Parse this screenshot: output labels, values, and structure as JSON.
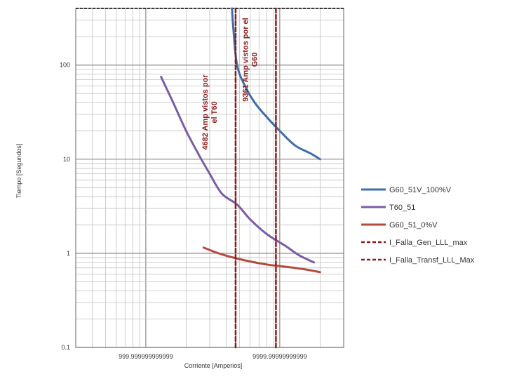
{
  "chart_data": {
    "type": "line",
    "xscale": "log",
    "yscale": "log",
    "xlim": [
      300,
      30000
    ],
    "ylim": [
      0.1,
      400
    ],
    "grid": true,
    "legend_position": "right",
    "xlabel": "Corriente [Amperios]",
    "ylabel": "Tiempo [Segundos]",
    "x_tick_labels": [
      {
        "value": 1000,
        "label": "999.999999999999"
      },
      {
        "value": 10000,
        "label": "9999.99999999999"
      }
    ],
    "y_tick_labels": [
      {
        "value": 0.1,
        "label": "0.1"
      },
      {
        "value": 1,
        "label": "1"
      },
      {
        "value": 10,
        "label": "10"
      },
      {
        "value": 100,
        "label": "100"
      }
    ],
    "series": [
      {
        "name": "G60_51V_100%V",
        "color": "#3f6ea8",
        "style": "solid",
        "points": [
          [
            4400,
            400
          ],
          [
            4500,
            250
          ],
          [
            4800,
            100
          ],
          [
            5500,
            60
          ],
          [
            6500,
            40
          ],
          [
            8000,
            28
          ],
          [
            10000,
            20
          ],
          [
            13000,
            14
          ],
          [
            17000,
            11.5
          ],
          [
            20000,
            10
          ]
        ]
      },
      {
        "name": "T60_51",
        "color": "#7b5ca6",
        "style": "solid",
        "points": [
          [
            1300,
            75
          ],
          [
            1600,
            40
          ],
          [
            2000,
            20
          ],
          [
            2500,
            11
          ],
          [
            3000,
            7
          ],
          [
            3700,
            4.3
          ],
          [
            4800,
            3.3
          ],
          [
            6000,
            2.3
          ],
          [
            8000,
            1.6
          ],
          [
            11000,
            1.2
          ],
          [
            14000,
            0.95
          ],
          [
            18000,
            0.8
          ]
        ]
      },
      {
        "name": "G60_51_0%V",
        "color": "#b54b3f",
        "style": "solid",
        "points": [
          [
            2700,
            1.15
          ],
          [
            3500,
            1.0
          ],
          [
            4500,
            0.9
          ],
          [
            6000,
            0.82
          ],
          [
            8000,
            0.76
          ],
          [
            11000,
            0.72
          ],
          [
            15000,
            0.68
          ],
          [
            20000,
            0.63
          ]
        ]
      },
      {
        "name": "I_Falla_Gen_LLL_max",
        "color": "#8b1a1a",
        "style": "dashed",
        "points": [
          [
            4682,
            0.1
          ],
          [
            4682,
            400
          ]
        ]
      },
      {
        "name": "I_Falla_Transf_LLL_Max",
        "color": "#8b1a1a",
        "style": "dashed",
        "points": [
          [
            9361,
            0.1
          ],
          [
            9361,
            400
          ]
        ]
      }
    ],
    "annotations": [
      {
        "text_line1": "4682 Amp vistos por",
        "text_line2": "el T60",
        "x": 4682
      },
      {
        "text_line1": "9361 Amp vistos por el",
        "text_line2": "G60",
        "x": 9361
      }
    ]
  }
}
